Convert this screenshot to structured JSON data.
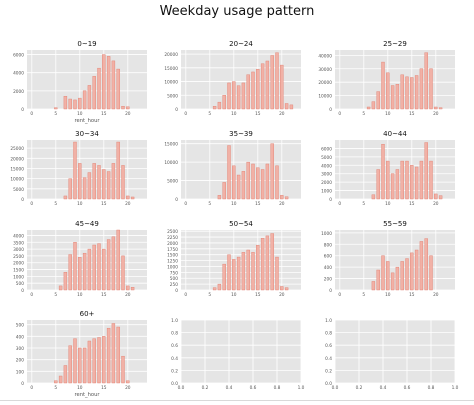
{
  "figure_title": "Weekday usage pattern",
  "colors": {
    "panel_bg": "#e5e5e5",
    "grid": "#ffffff",
    "bar_fill": "#f1b1a6",
    "bar_edge": "#e27c6c",
    "tick_text": "#555555",
    "title_text": "#111111"
  },
  "chart_data": [
    {
      "type": "bar",
      "title": "0~19",
      "xlabel": "rent_hour",
      "ylabel": "",
      "xlim": [
        -1,
        24
      ],
      "ylim": [
        0,
        6500
      ],
      "xticks": [
        0,
        5,
        10,
        15,
        20
      ],
      "yticks": [
        0,
        2000,
        4000,
        6000
      ],
      "ytick_labels": [
        "0",
        "2000",
        "4000",
        "6000"
      ],
      "grid": true,
      "x": [
        0,
        1,
        2,
        3,
        4,
        5,
        6,
        7,
        8,
        9,
        10,
        11,
        12,
        13,
        14,
        15,
        16,
        17,
        18,
        19,
        20,
        21,
        22,
        23
      ],
      "values": [
        0,
        0,
        0,
        0,
        0,
        150,
        0,
        1400,
        1100,
        1000,
        1200,
        2000,
        2600,
        3600,
        4500,
        6000,
        5800,
        5300,
        4400,
        300,
        250,
        0,
        0,
        0
      ]
    },
    {
      "type": "bar",
      "title": "20~24",
      "xlabel": "",
      "ylabel": "",
      "xlim": [
        -1,
        24
      ],
      "ylim": [
        0,
        21500
      ],
      "xticks": [
        0,
        5,
        10,
        15,
        20
      ],
      "yticks": [
        0,
        5000,
        10000,
        15000,
        20000
      ],
      "ytick_labels": [
        "0",
        "5000",
        "10000",
        "15000",
        "20000"
      ],
      "grid": true,
      "x": [
        0,
        1,
        2,
        3,
        4,
        5,
        6,
        7,
        8,
        9,
        10,
        11,
        12,
        13,
        14,
        15,
        16,
        17,
        18,
        19,
        20,
        21,
        22,
        23
      ],
      "values": [
        0,
        0,
        0,
        0,
        0,
        0,
        1000,
        2500,
        5000,
        9500,
        10000,
        8500,
        9500,
        12500,
        13500,
        14500,
        16500,
        17500,
        19500,
        20500,
        16000,
        2000,
        1500,
        0
      ]
    },
    {
      "type": "bar",
      "title": "25~29",
      "xlabel": "",
      "ylabel": "",
      "xlim": [
        -1,
        24
      ],
      "ylim": [
        0,
        44000
      ],
      "xticks": [
        0,
        5,
        10,
        15,
        20
      ],
      "yticks": [
        0,
        10000,
        20000,
        30000,
        40000
      ],
      "ytick_labels": [
        "0",
        "10000",
        "20000",
        "30000",
        "40000"
      ],
      "grid": true,
      "x": [
        0,
        1,
        2,
        3,
        4,
        5,
        6,
        7,
        8,
        9,
        10,
        11,
        12,
        13,
        14,
        15,
        16,
        17,
        18,
        19,
        20,
        21,
        22,
        23
      ],
      "values": [
        0,
        0,
        0,
        0,
        0,
        0,
        1500,
        5500,
        13000,
        35000,
        27000,
        17500,
        18500,
        25500,
        24000,
        23500,
        25000,
        30000,
        42000,
        30000,
        1500,
        1000,
        0,
        0
      ]
    },
    {
      "type": "bar",
      "title": "30~34",
      "xlabel": "",
      "ylabel": "",
      "xlim": [
        -1,
        24
      ],
      "ylim": [
        0,
        29000
      ],
      "xticks": [
        0,
        5,
        10,
        15,
        20
      ],
      "yticks": [
        0,
        5000,
        10000,
        15000,
        20000,
        25000
      ],
      "ytick_labels": [
        "0",
        "5000",
        "10000",
        "15000",
        "20000",
        "25000"
      ],
      "grid": true,
      "x": [
        0,
        1,
        2,
        3,
        4,
        5,
        6,
        7,
        8,
        9,
        10,
        11,
        12,
        13,
        14,
        15,
        16,
        17,
        18,
        19,
        20,
        21,
        22,
        23
      ],
      "values": [
        0,
        0,
        0,
        0,
        0,
        0,
        0,
        1500,
        10000,
        28000,
        17500,
        10500,
        13000,
        17500,
        16500,
        14500,
        13500,
        17500,
        28000,
        16500,
        1500,
        1000,
        0,
        0
      ]
    },
    {
      "type": "bar",
      "title": "35~39",
      "xlabel": "",
      "ylabel": "",
      "xlim": [
        -1,
        24
      ],
      "ylim": [
        0,
        16000
      ],
      "xticks": [
        0,
        5,
        10,
        15,
        20
      ],
      "yticks": [
        0,
        5000,
        10000,
        15000
      ],
      "ytick_labels": [
        "0",
        "5000",
        "10000",
        "15000"
      ],
      "grid": true,
      "x": [
        0,
        1,
        2,
        3,
        4,
        5,
        6,
        7,
        8,
        9,
        10,
        11,
        12,
        13,
        14,
        15,
        16,
        17,
        18,
        19,
        20,
        21,
        22,
        23
      ],
      "values": [
        0,
        0,
        0,
        0,
        0,
        0,
        0,
        1000,
        4500,
        14500,
        9000,
        6500,
        7500,
        10000,
        9500,
        8500,
        8000,
        9500,
        15000,
        9000,
        1000,
        600,
        0,
        0
      ]
    },
    {
      "type": "bar",
      "title": "40~44",
      "xlabel": "",
      "ylabel": "",
      "xlim": [
        -1,
        24
      ],
      "ylim": [
        0,
        7000
      ],
      "xticks": [
        0,
        5,
        10,
        15,
        20
      ],
      "yticks": [
        0,
        1000,
        2000,
        3000,
        4000,
        5000,
        6000
      ],
      "ytick_labels": [
        "0",
        "1000",
        "2000",
        "3000",
        "4000",
        "5000",
        "6000"
      ],
      "grid": true,
      "x": [
        0,
        1,
        2,
        3,
        4,
        5,
        6,
        7,
        8,
        9,
        10,
        11,
        12,
        13,
        14,
        15,
        16,
        17,
        18,
        19,
        20,
        21,
        22,
        23
      ],
      "values": [
        0,
        0,
        0,
        0,
        0,
        0,
        0,
        500,
        3500,
        6500,
        4500,
        3000,
        3500,
        4500,
        4500,
        4000,
        3800,
        4500,
        6700,
        4500,
        600,
        400,
        0,
        0
      ]
    },
    {
      "type": "bar",
      "title": "45~49",
      "xlabel": "",
      "ylabel": "",
      "xlim": [
        -1,
        24
      ],
      "ylim": [
        0,
        4400
      ],
      "xticks": [
        0,
        5,
        10,
        15,
        20
      ],
      "yticks": [
        0,
        500,
        1000,
        1500,
        2000,
        2500,
        3000,
        3500,
        4000
      ],
      "ytick_labels": [
        "0",
        "500",
        "1000",
        "1500",
        "2000",
        "2500",
        "3000",
        "3500",
        "4000"
      ],
      "grid": true,
      "x": [
        0,
        1,
        2,
        3,
        4,
        5,
        6,
        7,
        8,
        9,
        10,
        11,
        12,
        13,
        14,
        15,
        16,
        17,
        18,
        19,
        20,
        21,
        22,
        23
      ],
      "values": [
        0,
        0,
        0,
        0,
        0,
        0,
        300,
        1300,
        2600,
        3500,
        2400,
        2700,
        3000,
        3300,
        3400,
        3000,
        3700,
        3900,
        4400,
        2500,
        300,
        200,
        0,
        0
      ]
    },
    {
      "type": "bar",
      "title": "50~54",
      "xlabel": "",
      "ylabel": "",
      "xlim": [
        -1,
        24
      ],
      "ylim": [
        0,
        2550
      ],
      "xticks": [
        0,
        5,
        10,
        15,
        20
      ],
      "yticks": [
        0,
        250,
        500,
        750,
        1000,
        1250,
        1500,
        1750,
        2000,
        2250,
        2500
      ],
      "ytick_labels": [
        "0",
        "250",
        "500",
        "750",
        "1000",
        "1250",
        "1500",
        "1750",
        "2000",
        "2250",
        "2500"
      ],
      "grid": true,
      "x": [
        0,
        1,
        2,
        3,
        4,
        5,
        6,
        7,
        8,
        9,
        10,
        11,
        12,
        13,
        14,
        15,
        16,
        17,
        18,
        19,
        20,
        21,
        22,
        23
      ],
      "values": [
        0,
        0,
        0,
        0,
        0,
        0,
        100,
        250,
        1100,
        1500,
        1300,
        1400,
        1600,
        1700,
        1600,
        1900,
        2200,
        2300,
        2400,
        1400,
        150,
        100,
        0,
        0
      ]
    },
    {
      "type": "bar",
      "title": "55~59",
      "xlabel": "",
      "ylabel": "",
      "xlim": [
        -1,
        24
      ],
      "ylim": [
        0,
        1050
      ],
      "xticks": [
        0,
        5,
        10,
        15,
        20
      ],
      "yticks": [
        0,
        200,
        400,
        600,
        800,
        1000
      ],
      "ytick_labels": [
        "0",
        "200",
        "400",
        "600",
        "800",
        "1000"
      ],
      "grid": true,
      "x": [
        0,
        1,
        2,
        3,
        4,
        5,
        6,
        7,
        8,
        9,
        10,
        11,
        12,
        13,
        14,
        15,
        16,
        17,
        18,
        19,
        20,
        21,
        22,
        23
      ],
      "values": [
        0,
        0,
        0,
        0,
        0,
        0,
        0,
        150,
        350,
        600,
        500,
        300,
        400,
        500,
        550,
        650,
        700,
        850,
        900,
        600,
        0,
        0,
        0,
        0
      ]
    },
    {
      "type": "bar",
      "title": "60+",
      "xlabel": "rent_hour",
      "ylabel": "",
      "xlim": [
        -1,
        24
      ],
      "ylim": [
        0,
        540
      ],
      "xticks": [
        0,
        5,
        10,
        15,
        20
      ],
      "yticks": [
        0,
        100,
        200,
        300,
        400,
        500
      ],
      "ytick_labels": [
        "0",
        "100",
        "200",
        "300",
        "400",
        "500"
      ],
      "grid": true,
      "x": [
        0,
        1,
        2,
        3,
        4,
        5,
        6,
        7,
        8,
        9,
        10,
        11,
        12,
        13,
        14,
        15,
        16,
        17,
        18,
        19,
        20,
        21,
        22,
        23
      ],
      "values": [
        0,
        0,
        0,
        0,
        0,
        20,
        60,
        150,
        320,
        380,
        300,
        300,
        360,
        380,
        390,
        400,
        470,
        510,
        480,
        230,
        20,
        0,
        0,
        0
      ]
    },
    {
      "type": "empty",
      "title": "",
      "xlabel": "",
      "ylabel": "",
      "xlim": [
        0,
        1
      ],
      "ylim": [
        0,
        1
      ],
      "xticks": [
        0,
        0.2,
        0.4,
        0.6,
        0.8,
        1.0
      ],
      "yticks": [
        0,
        0.2,
        0.4,
        0.6,
        0.8,
        1.0
      ],
      "xtick_labels": [
        "0.0",
        "0.2",
        "0.4",
        "0.6",
        "0.8",
        "1.0"
      ],
      "ytick_labels": [
        "0.0",
        "0.2",
        "0.4",
        "0.6",
        "0.8",
        "1.0"
      ],
      "grid": true
    },
    {
      "type": "empty",
      "title": "",
      "xlabel": "",
      "ylabel": "",
      "xlim": [
        0,
        1
      ],
      "ylim": [
        0,
        1
      ],
      "xticks": [
        0,
        0.2,
        0.4,
        0.6,
        0.8,
        1.0
      ],
      "yticks": [
        0,
        0.2,
        0.4,
        0.6,
        0.8,
        1.0
      ],
      "xtick_labels": [
        "0.0",
        "0.2",
        "0.4",
        "0.6",
        "0.8",
        "1.0"
      ],
      "ytick_labels": [
        "0.0",
        "0.2",
        "0.4",
        "0.6",
        "0.8",
        "1.0"
      ],
      "grid": true
    }
  ]
}
